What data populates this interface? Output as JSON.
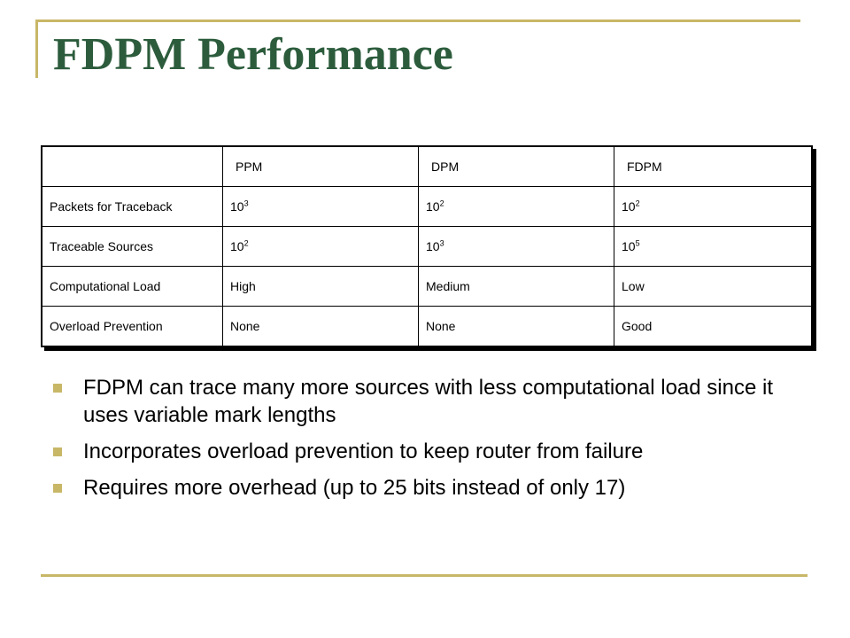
{
  "title": "FDPM Performance",
  "colors": {
    "title": "#2c5c3c",
    "accent": "#c8b767"
  },
  "table": {
    "headers": [
      "",
      "PPM",
      "DPM",
      "FDPM"
    ],
    "rows": [
      {
        "label": "Packets for Traceback",
        "cells": [
          {
            "base": "10",
            "exp": "3"
          },
          {
            "base": "10",
            "exp": "2"
          },
          {
            "base": "10",
            "exp": "2"
          }
        ]
      },
      {
        "label": "Traceable Sources",
        "cells": [
          {
            "base": "10",
            "exp": "2"
          },
          {
            "base": "10",
            "exp": "3"
          },
          {
            "base": "10",
            "exp": "5"
          }
        ]
      },
      {
        "label": "Computational Load",
        "cells": [
          {
            "base": "High",
            "exp": ""
          },
          {
            "base": "Medium",
            "exp": ""
          },
          {
            "base": "Low",
            "exp": ""
          }
        ]
      },
      {
        "label": "Overload Prevention",
        "cells": [
          {
            "base": "None",
            "exp": ""
          },
          {
            "base": "None",
            "exp": ""
          },
          {
            "base": "Good",
            "exp": ""
          }
        ]
      }
    ]
  },
  "bullets": [
    "FDPM can trace many more sources with less computational load since it uses variable mark lengths",
    "Incorporates overload prevention to keep router from failure",
    "Requires more overhead (up to 25 bits instead of only 17)"
  ]
}
